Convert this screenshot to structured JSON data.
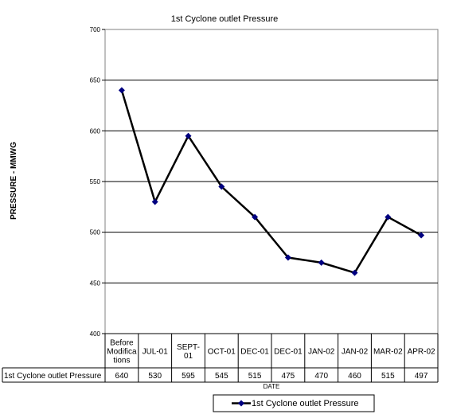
{
  "chart_data": {
    "type": "line",
    "title": "1st Cyclone outlet Pressure",
    "xlabel": "DATE",
    "ylabel": "PRESSURE - MMWG",
    "ylim": [
      400,
      700
    ],
    "y_ticks": [
      400,
      450,
      500,
      550,
      600,
      650,
      700
    ],
    "grid": true,
    "legend_position": "bottom-center",
    "categories": [
      "Before Modifications",
      "JUL-01",
      "SEPT-01",
      "OCT-01",
      "DEC-01",
      "DEC-01",
      "JAN-02",
      "JAN-02",
      "MAR-02",
      "APR-02"
    ],
    "category_display_lines": [
      [
        "Before",
        "Modifica",
        "tions"
      ],
      [
        "JUL-01"
      ],
      [
        "SEPT-",
        "01"
      ],
      [
        "OCT-01"
      ],
      [
        "DEC-01"
      ],
      [
        "DEC-01"
      ],
      [
        "JAN-02"
      ],
      [
        "JAN-02"
      ],
      [
        "MAR-02"
      ],
      [
        "APR-02"
      ]
    ],
    "series": [
      {
        "name": "1st Cyclone outlet Pressure",
        "values": [
          640,
          530,
          595,
          545,
          515,
          475,
          470,
          460,
          515,
          497
        ],
        "line_color": "#000000",
        "marker_color": "#000080",
        "marker": "diamond"
      }
    ],
    "data_table": true
  }
}
